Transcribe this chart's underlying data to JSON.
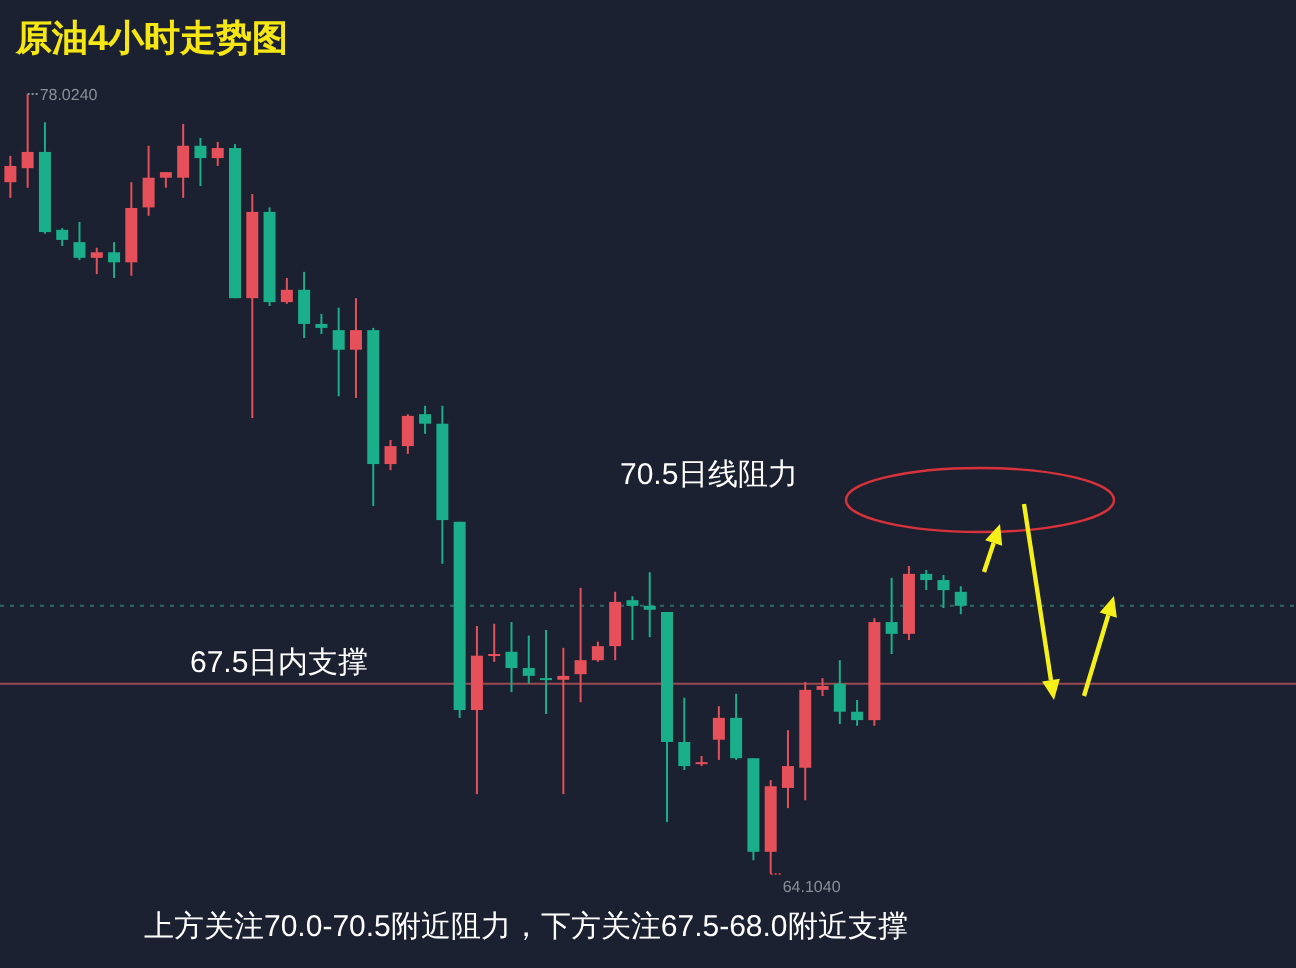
{
  "chart_data": {
    "type": "candlestick",
    "title": "原油4小时走势图",
    "categories": [
      null,
      null,
      null,
      null,
      null,
      null,
      null,
      null,
      null,
      null,
      null,
      null,
      null,
      null,
      null,
      null,
      null,
      null,
      null,
      null,
      null,
      null,
      null,
      null,
      null,
      null,
      null,
      null,
      null,
      null,
      null,
      null,
      null,
      null,
      null,
      null,
      null,
      null,
      null,
      null,
      null,
      null,
      null,
      null,
      null,
      null,
      null,
      null,
      null,
      null,
      null,
      null,
      null,
      null,
      null,
      null
    ],
    "ohlc": [
      [
        76.45,
        76.92,
        76.17,
        76.74
      ],
      [
        76.7,
        78.024,
        76.35,
        76.99
      ],
      [
        76.99,
        77.52,
        75.53,
        75.56
      ],
      [
        75.6,
        75.63,
        75.31,
        75.42
      ],
      [
        75.38,
        75.74,
        75.06,
        75.1
      ],
      [
        75.1,
        75.28,
        74.81,
        75.2
      ],
      [
        75.2,
        75.38,
        74.74,
        75.02
      ],
      [
        75.02,
        76.45,
        74.78,
        75.99
      ],
      [
        76.0,
        77.1,
        75.85,
        76.53
      ],
      [
        76.53,
        76.63,
        76.35,
        76.63
      ],
      [
        76.53,
        77.49,
        76.17,
        77.1
      ],
      [
        77.1,
        77.24,
        76.38,
        76.88
      ],
      [
        76.88,
        77.17,
        76.74,
        77.06
      ],
      [
        77.06,
        77.13,
        74.38,
        74.38
      ],
      [
        74.38,
        76.24,
        72.24,
        75.92
      ],
      [
        75.92,
        76.0,
        74.24,
        74.31
      ],
      [
        74.31,
        74.74,
        74.28,
        74.53
      ],
      [
        74.53,
        74.85,
        73.67,
        73.92
      ],
      [
        73.92,
        74.1,
        73.74,
        73.85
      ],
      [
        73.81,
        74.21,
        72.63,
        73.46
      ],
      [
        73.46,
        74.38,
        72.6,
        73.81
      ],
      [
        73.81,
        73.85,
        70.67,
        71.42
      ],
      [
        71.42,
        71.85,
        71.31,
        71.74
      ],
      [
        71.74,
        72.31,
        71.6,
        72.28
      ],
      [
        72.31,
        72.46,
        71.96,
        72.14
      ],
      [
        72.14,
        72.46,
        69.64,
        70.42
      ],
      [
        70.39,
        70.39,
        66.89,
        67.03
      ],
      [
        67.03,
        68.53,
        65.53,
        68.0
      ],
      [
        68.0,
        68.57,
        67.89,
        68.03
      ],
      [
        68.07,
        68.6,
        67.35,
        67.78
      ],
      [
        67.78,
        68.36,
        67.5,
        67.64
      ],
      [
        67.6,
        68.46,
        66.96,
        67.57
      ],
      [
        67.57,
        68.14,
        65.53,
        67.64
      ],
      [
        67.67,
        69.21,
        67.17,
        67.92
      ],
      [
        67.92,
        68.25,
        67.89,
        68.17
      ],
      [
        68.17,
        69.14,
        67.92,
        68.96
      ],
      [
        68.99,
        69.06,
        68.28,
        68.89
      ],
      [
        68.89,
        69.49,
        68.33,
        68.82
      ],
      [
        68.78,
        68.78,
        65.03,
        66.46
      ],
      [
        66.46,
        67.25,
        65.96,
        66.03
      ],
      [
        66.07,
        66.21,
        66.03,
        66.1
      ],
      [
        66.5,
        67.1,
        66.14,
        66.89
      ],
      [
        66.89,
        67.32,
        66.14,
        66.17
      ],
      [
        66.17,
        66.17,
        64.35,
        64.5
      ],
      [
        64.5,
        65.78,
        64.104,
        65.67
      ],
      [
        65.64,
        66.67,
        65.28,
        66.03
      ],
      [
        66.0,
        67.53,
        65.42,
        67.39
      ],
      [
        67.39,
        67.6,
        67.28,
        67.46
      ],
      [
        67.5,
        67.92,
        66.78,
        67.0
      ],
      [
        67.0,
        67.21,
        66.75,
        66.85
      ],
      [
        66.85,
        68.67,
        66.75,
        68.6
      ],
      [
        68.6,
        69.39,
        68.03,
        68.39
      ],
      [
        68.39,
        69.6,
        68.28,
        69.46
      ],
      [
        69.46,
        69.53,
        69.17,
        69.35
      ],
      [
        69.35,
        69.44,
        68.85,
        69.17
      ],
      [
        69.14,
        69.24,
        68.74,
        68.89
      ]
    ],
    "colors": [
      "#e5505a",
      "#e5505a",
      "#1aae8a",
      "#1aae8a",
      "#1aae8a",
      "#e5505a",
      "#1aae8a",
      "#e5505a",
      "#e5505a",
      "#e5505a",
      "#e5505a",
      "#1aae8a",
      "#e5505a",
      "#1aae8a",
      "#e5505a",
      "#1aae8a",
      "#e5505a",
      "#1aae8a",
      "#1aae8a",
      "#1aae8a",
      "#e5505a",
      "#1aae8a",
      "#e5505a",
      "#e5505a",
      "#1aae8a",
      "#1aae8a",
      "#1aae8a",
      "#e5505a",
      "#e5505a",
      "#1aae8a",
      "#1aae8a",
      "#1aae8a",
      "#e5505a",
      "#e5505a",
      "#e5505a",
      "#e5505a",
      "#1aae8a",
      "#1aae8a",
      "#1aae8a",
      "#1aae8a",
      "#e5505a",
      "#e5505a",
      "#1aae8a",
      "#1aae8a",
      "#e5505a",
      "#e5505a",
      "#e5505a",
      "#e5505a",
      "#1aae8a",
      "#1aae8a",
      "#e5505a",
      "#1aae8a",
      "#e5505a",
      "#1aae8a",
      "#1aae8a",
      "#1aae8a"
    ],
    "ref_lines": [
      {
        "axis": "y",
        "value": 67.5,
        "label": "67.5日内支撑",
        "color": "#9c4a4f",
        "line_style": "solid"
      },
      {
        "axis": "y",
        "value": 68.89,
        "color": "#2f6b66",
        "line_style": "dotted"
      }
    ],
    "annotations": [
      "70.5日线阻力",
      "78.0240",
      "64.1040",
      "上方关注70.0-70.5附近阻力，下方关注67.5-68.0附近支撑"
    ]
  }
}
